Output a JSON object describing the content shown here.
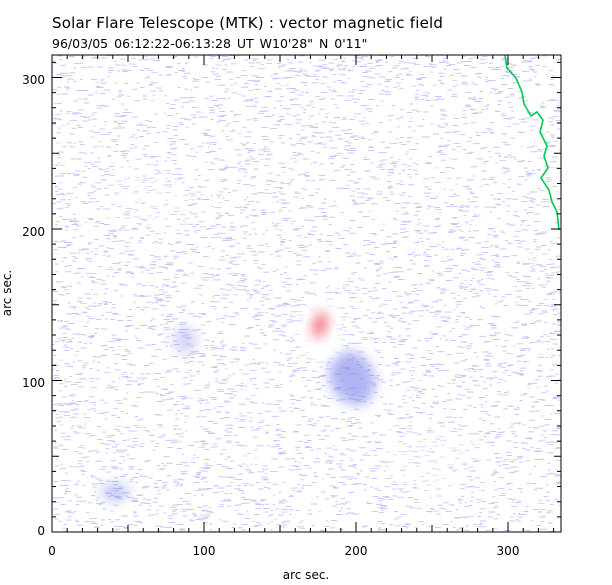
{
  "header": {
    "title": "Solar Flare Telescope (MTK) : vector magnetic field",
    "subtitle": "96/03/05  06:12:22-06:13:28 UT    W10'28\"   N 0'11\""
  },
  "plot": {
    "xlabel": "arc sec.",
    "ylabel": "arc sec.",
    "xlim": [
      0,
      335
    ],
    "ylim": [
      0,
      315
    ],
    "x_ticks": [
      "0",
      "100",
      "200",
      "300"
    ],
    "y_ticks": [
      "0",
      "100",
      "200",
      "300"
    ],
    "colors": {
      "negative_field": "#8f96ee",
      "positive_field": "#ee4f5c",
      "limb_line": "#00c850",
      "background": "#ffffff"
    }
  }
}
